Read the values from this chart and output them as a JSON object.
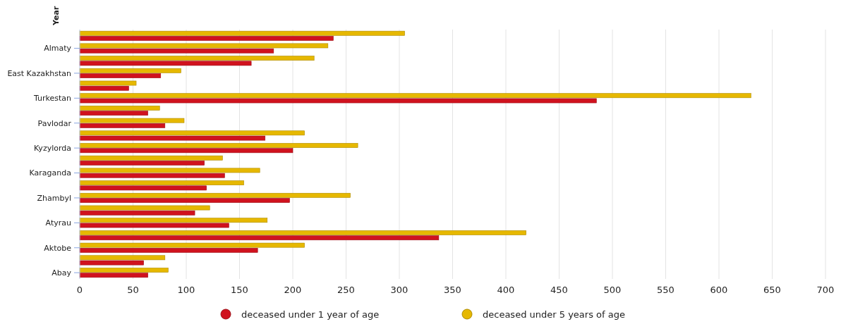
{
  "chart_data": {
    "type": "bar",
    "orientation": "horizontal",
    "ylabel": "Year",
    "categories": [
      null,
      "Almaty",
      null,
      "East Kazakhstan",
      null,
      "Turkestan",
      null,
      "Pavlodar",
      null,
      "Kyzylorda",
      null,
      "Karaganda",
      null,
      "Zhambyl",
      null,
      "Atyrau",
      null,
      "Aktobe",
      null,
      "Abay"
    ],
    "series": [
      {
        "name": "deceased under 1 year of age",
        "color": "#d0121e",
        "values": [
          238,
          182,
          161,
          76,
          46,
          485,
          64,
          80,
          174,
          200,
          117,
          136,
          119,
          197,
          108,
          140,
          337,
          167,
          60,
          64
        ]
      },
      {
        "name": "deceased under 5 years of age",
        "color": "#e6b800",
        "values": [
          305,
          233,
          220,
          95,
          53,
          630,
          75,
          98,
          211,
          261,
          134,
          169,
          154,
          254,
          122,
          176,
          419,
          211,
          80,
          83
        ]
      }
    ],
    "xlim": [
      0,
      700
    ],
    "xticks": [
      0,
      50,
      100,
      150,
      200,
      250,
      300,
      350,
      400,
      450,
      500,
      550,
      600,
      650,
      700
    ],
    "grid": "x",
    "legend": "bottom"
  }
}
